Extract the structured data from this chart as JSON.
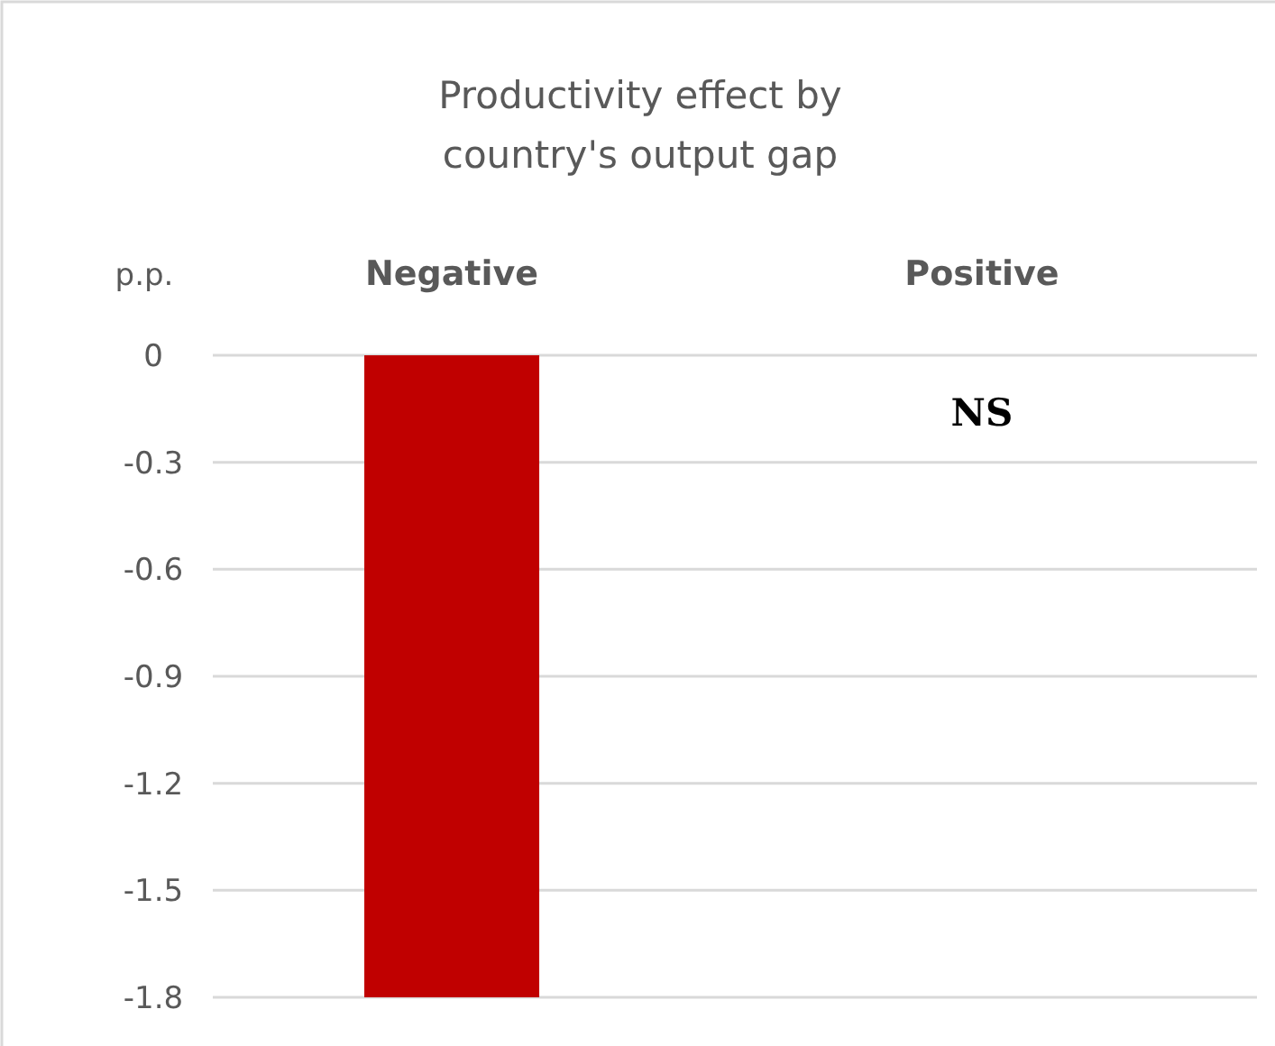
{
  "chart_data": {
    "type": "bar",
    "title": "Productivity effect by\ncountry's output gap",
    "ylabel": "p.p.",
    "categories": [
      "Negative",
      "Positive"
    ],
    "values": [
      -1.8,
      null
    ],
    "color": "#c00000",
    "ylim": [
      -1.8,
      0
    ],
    "yticks": [
      0,
      -0.3,
      -0.6,
      -0.9,
      -1.2,
      -1.5,
      -1.8
    ],
    "grid": "y",
    "annotations": [
      "NS"
    ]
  }
}
